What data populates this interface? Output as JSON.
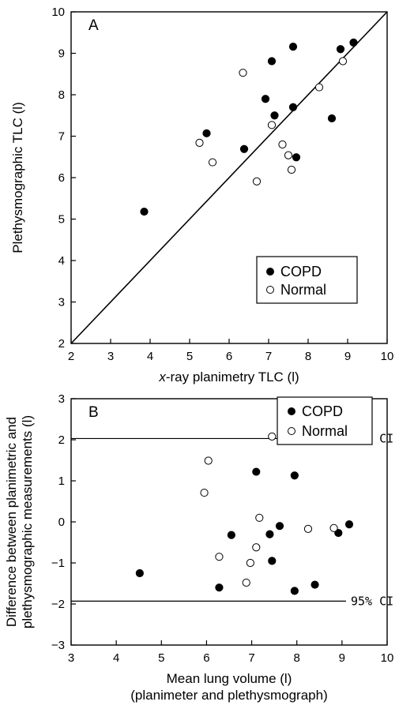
{
  "chart_data": [
    {
      "type": "scatter",
      "panel_label": "A",
      "xlabel_italic": "x",
      "xlabel_rest": "-ray planimetry TLC (l)",
      "ylabel": "Plethysmographic TLC (l)",
      "xlim": [
        2,
        10
      ],
      "ylim": [
        2,
        10
      ],
      "xticks": [
        "2",
        "3",
        "4",
        "5",
        "6",
        "7",
        "8",
        "9",
        "10"
      ],
      "yticks": [
        "2",
        "3",
        "4",
        "5",
        "6",
        "7",
        "8",
        "9",
        "10"
      ],
      "legend_position": "lower-right",
      "identity_line": true,
      "series": [
        {
          "name": "COPD",
          "marker": "filled-circle",
          "points": [
            [
              3.85,
              5.18
            ],
            [
              5.43,
              7.07
            ],
            [
              6.38,
              6.69
            ],
            [
              6.92,
              7.9
            ],
            [
              7.08,
              8.81
            ],
            [
              7.15,
              7.5
            ],
            [
              7.62,
              9.16
            ],
            [
              7.62,
              7.7
            ],
            [
              7.7,
              6.49
            ],
            [
              8.6,
              7.43
            ],
            [
              8.82,
              9.1
            ],
            [
              9.15,
              9.26
            ]
          ]
        },
        {
          "name": "Normal",
          "marker": "open-circle",
          "points": [
            [
              5.25,
              6.84
            ],
            [
              5.58,
              6.37
            ],
            [
              6.35,
              8.53
            ],
            [
              6.7,
              5.91
            ],
            [
              7.08,
              7.27
            ],
            [
              7.35,
              6.8
            ],
            [
              7.5,
              6.54
            ],
            [
              7.58,
              6.19
            ],
            [
              8.28,
              8.18
            ],
            [
              8.88,
              8.81
            ]
          ]
        }
      ]
    },
    {
      "type": "scatter",
      "panel_label": "B",
      "xlabel": "Mean lung volume (l)",
      "xlabel_sub": "(planimeter and plethysmograph)",
      "ylabel_line1": "Difference between planimetric and",
      "ylabel_line2": "plethysmographic measurements (l)",
      "xlim": [
        3,
        10
      ],
      "ylim": [
        -3,
        3
      ],
      "xticks": [
        "3",
        "4",
        "5",
        "6",
        "7",
        "8",
        "9",
        "10"
      ],
      "yticks": [
        "−3",
        "−2",
        "−1",
        "0",
        "1",
        "2",
        "3"
      ],
      "legend_position": "top-right",
      "reference_lines": [
        {
          "y": 2.03,
          "label": "95% CI"
        },
        {
          "y": -1.93,
          "label": "95% CI"
        }
      ],
      "series": [
        {
          "name": "COPD",
          "marker": "filled-circle",
          "points": [
            [
              4.52,
              -1.25
            ],
            [
              6.28,
              -1.6
            ],
            [
              6.55,
              -0.32
            ],
            [
              7.1,
              1.22
            ],
            [
              7.4,
              -0.3
            ],
            [
              7.45,
              -0.95
            ],
            [
              7.62,
              -0.1
            ],
            [
              7.95,
              1.13
            ],
            [
              7.95,
              -1.68
            ],
            [
              8.4,
              -1.53
            ],
            [
              8.92,
              -0.27
            ],
            [
              9.16,
              -0.06
            ]
          ]
        },
        {
          "name": "Normal",
          "marker": "open-circle",
          "points": [
            [
              5.95,
              0.71
            ],
            [
              6.04,
              1.49
            ],
            [
              6.28,
              -0.85
            ],
            [
              6.88,
              -1.48
            ],
            [
              6.97,
              -1.0
            ],
            [
              7.1,
              -0.62
            ],
            [
              7.17,
              0.1
            ],
            [
              7.45,
              2.08
            ],
            [
              8.25,
              -0.17
            ],
            [
              8.82,
              -0.15
            ]
          ]
        }
      ]
    }
  ]
}
